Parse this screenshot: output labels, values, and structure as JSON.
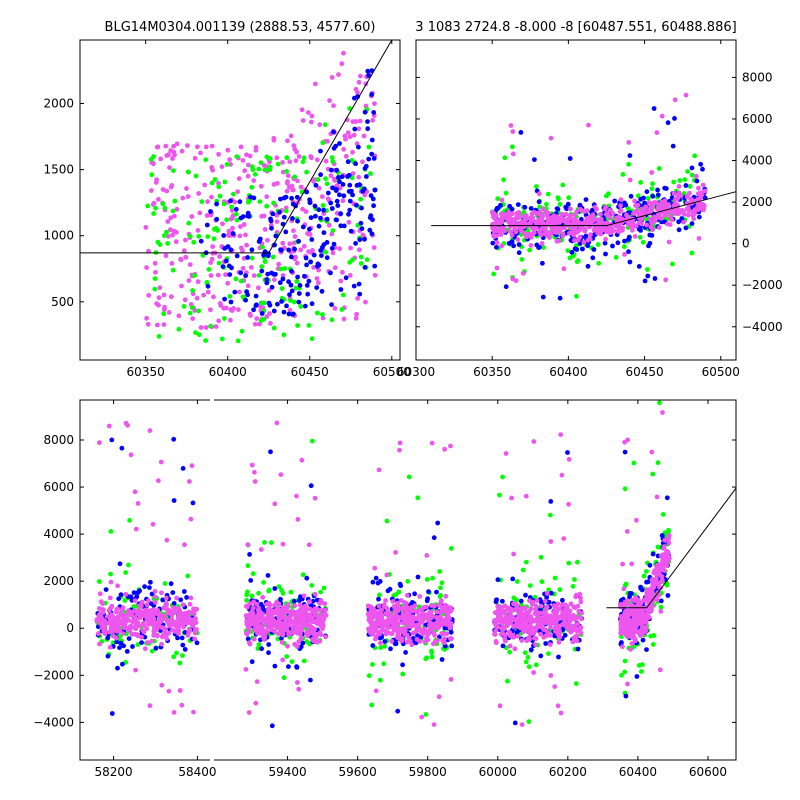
{
  "chart_data": [
    {
      "id": "top-left",
      "type": "scatter",
      "title": "BLG14M0304.001139 (2888.53, 4577.60)",
      "xlabel": "",
      "ylabel": "",
      "xlim": [
        60310,
        60505
      ],
      "ylim": [
        60,
        2480
      ],
      "xticks": [
        60350,
        60400,
        60450,
        60500
      ],
      "xtick_labels": [
        "60350",
        "60400",
        "60450",
        "60500"
      ],
      "yticks": [
        500,
        1000,
        1500,
        2000
      ],
      "ytick_labels": [
        "500",
        "1000",
        "1500",
        "2000"
      ],
      "yaxis_side": "left",
      "grid": false,
      "series_colors": {
        "green": "#00ff00",
        "blue": "#0000ff",
        "magenta": "#ee55ee"
      },
      "series_counts": {
        "green": 180,
        "blue": 230,
        "magenta": 420
      },
      "x_range_points": [
        60350,
        60490
      ],
      "model_line": {
        "x": [
          60310,
          60425,
          60500
        ],
        "y": [
          870,
          870,
          2480
        ],
        "color": "#000000"
      }
    },
    {
      "id": "top-right",
      "type": "scatter",
      "title": "3 1083 2724.8 -8.000 -8 [60487.551, 60488.886]",
      "xlabel": "",
      "ylabel": "",
      "xlim": [
        60300,
        60510
      ],
      "ylim": [
        -5600,
        9800
      ],
      "xticks": [
        60300,
        60350,
        60400,
        60450,
        60500
      ],
      "xtick_labels": [
        "60300",
        "60350",
        "60400",
        "60450",
        "60500"
      ],
      "yticks": [
        -4000,
        -2000,
        0,
        2000,
        4000,
        6000,
        8000
      ],
      "ytick_labels": [
        "−4000",
        "−2000",
        "0",
        "2000",
        "4000",
        "6000",
        "8000"
      ],
      "yaxis_side": "right",
      "grid": false,
      "series_colors": {
        "green": "#00ff00",
        "blue": "#0000ff",
        "magenta": "#ee55ee"
      },
      "series_counts": {
        "green": 200,
        "blue": 320,
        "magenta": 520
      },
      "x_range_points": [
        60350,
        60490
      ],
      "model_line": {
        "x": [
          60310,
          60425,
          60510
        ],
        "y": [
          870,
          870,
          2500
        ],
        "color": "#000000"
      }
    },
    {
      "id": "bottom",
      "type": "scatter",
      "title": "",
      "xlabel": "",
      "ylabel": "",
      "broken_axis": true,
      "segments": [
        {
          "xlim": [
            58120,
            58430
          ],
          "xticks": [
            58200,
            58400
          ],
          "xtick_labels": [
            "58200",
            "58400"
          ],
          "clusters": [
            [
              58160,
              58400
            ]
          ]
        },
        {
          "xlim": [
            59190,
            60680
          ],
          "xticks": [
            59400,
            59600,
            59800,
            60000,
            60200,
            60400,
            60600
          ],
          "xtick_labels": [
            "59400",
            "59600",
            "59800",
            "60000",
            "60200",
            "60400",
            "60600"
          ],
          "clusters": [
            [
              59280,
              59510
            ],
            [
              59630,
              59870
            ],
            [
              59990,
              60240
            ],
            [
              60350,
              60490
            ]
          ]
        }
      ],
      "ylim": [
        -5600,
        9700
      ],
      "yticks": [
        -4000,
        -2000,
        0,
        2000,
        4000,
        6000,
        8000
      ],
      "ytick_labels": [
        "−4000",
        "−2000",
        "0",
        "2000",
        "4000",
        "6000",
        "8000"
      ],
      "yaxis_side": "left",
      "grid": false,
      "series_colors": {
        "green": "#00ff00",
        "blue": "#0000ff",
        "magenta": "#ee55ee"
      },
      "cluster_counts": {
        "green": 90,
        "blue": 130,
        "magenta": 330
      },
      "model_line": {
        "x": [
          60310,
          60425,
          60680
        ],
        "y": [
          870,
          870,
          5950
        ],
        "color": "#000000"
      }
    }
  ]
}
